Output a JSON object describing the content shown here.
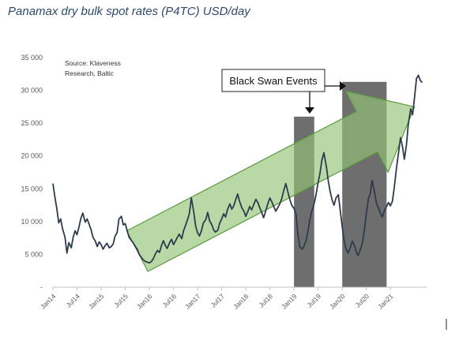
{
  "title": "Panamax dry bulk spot rates (P4TC) USD/day",
  "source_line1": "Source: Klaveness",
  "source_line2": "Research, Baltic",
  "colors": {
    "line": "#2e3b4e",
    "arrow_fill": "#92c476",
    "arrow_stroke": "#5a9a3c",
    "event_bar": "#5e5e5e",
    "axis": "#bfbfbf"
  },
  "chart_data": {
    "type": "line",
    "title": "Panamax dry bulk spot rates (P4TC) USD/day",
    "unit": "USD/day",
    "ylim": [
      0,
      35000
    ],
    "y_ticks": [
      0,
      5000,
      10000,
      15000,
      20000,
      25000,
      30000,
      35000
    ],
    "y_tick_labels": [
      "-",
      "5 000",
      "10 000",
      "15 000",
      "20 000",
      "25 000",
      "30 000",
      "35 000"
    ],
    "x_tick_labels": [
      "Jan14",
      "Jul14",
      "Jan15",
      "Jul15",
      "Jan16",
      "Jul16",
      "Jan17",
      "Jul17",
      "Jan18",
      "Jul18",
      "Jan19",
      "Jul19",
      "Jan20",
      "Jul20",
      "Jan21"
    ],
    "x_start": 2014.0,
    "x_end": 2021.75,
    "series": [
      {
        "name": "Panamax P4TC",
        "points": [
          [
            2014.0,
            15800
          ],
          [
            2014.04,
            13800
          ],
          [
            2014.08,
            12000
          ],
          [
            2014.12,
            9800
          ],
          [
            2014.16,
            10400
          ],
          [
            2014.2,
            8900
          ],
          [
            2014.25,
            7600
          ],
          [
            2014.29,
            5200
          ],
          [
            2014.33,
            6800
          ],
          [
            2014.38,
            6000
          ],
          [
            2014.42,
            7600
          ],
          [
            2014.46,
            8600
          ],
          [
            2014.5,
            8000
          ],
          [
            2014.54,
            9200
          ],
          [
            2014.58,
            10500
          ],
          [
            2014.62,
            11300
          ],
          [
            2014.67,
            9900
          ],
          [
            2014.71,
            10400
          ],
          [
            2014.75,
            9600
          ],
          [
            2014.79,
            8800
          ],
          [
            2014.83,
            7600
          ],
          [
            2014.88,
            7000
          ],
          [
            2014.92,
            6200
          ],
          [
            2014.96,
            6900
          ],
          [
            2015.0,
            6500
          ],
          [
            2015.04,
            5800
          ],
          [
            2015.08,
            6300
          ],
          [
            2015.12,
            6700
          ],
          [
            2015.17,
            6000
          ],
          [
            2015.21,
            6200
          ],
          [
            2015.25,
            6600
          ],
          [
            2015.29,
            7800
          ],
          [
            2015.33,
            8300
          ],
          [
            2015.37,
            10400
          ],
          [
            2015.42,
            10800
          ],
          [
            2015.46,
            9500
          ],
          [
            2015.5,
            9700
          ],
          [
            2015.54,
            8600
          ],
          [
            2015.58,
            7600
          ],
          [
            2015.62,
            7200
          ],
          [
            2015.67,
            6700
          ],
          [
            2015.71,
            6200
          ],
          [
            2015.75,
            5800
          ],
          [
            2015.79,
            5000
          ],
          [
            2015.83,
            4600
          ],
          [
            2015.87,
            4200
          ],
          [
            2015.92,
            3900
          ],
          [
            2015.96,
            3800
          ],
          [
            2016.0,
            3700
          ],
          [
            2016.04,
            3900
          ],
          [
            2016.08,
            4300
          ],
          [
            2016.12,
            5000
          ],
          [
            2016.17,
            5600
          ],
          [
            2016.21,
            5300
          ],
          [
            2016.25,
            6300
          ],
          [
            2016.29,
            7100
          ],
          [
            2016.33,
            6400
          ],
          [
            2016.37,
            5900
          ],
          [
            2016.42,
            6800
          ],
          [
            2016.46,
            7300
          ],
          [
            2016.5,
            6500
          ],
          [
            2016.54,
            7000
          ],
          [
            2016.58,
            7600
          ],
          [
            2016.62,
            8100
          ],
          [
            2016.67,
            7400
          ],
          [
            2016.71,
            8600
          ],
          [
            2016.75,
            9400
          ],
          [
            2016.79,
            10300
          ],
          [
            2016.83,
            11200
          ],
          [
            2016.87,
            13600
          ],
          [
            2016.92,
            11500
          ],
          [
            2016.96,
            9300
          ],
          [
            2017.0,
            8300
          ],
          [
            2017.04,
            7800
          ],
          [
            2017.08,
            8600
          ],
          [
            2017.12,
            9800
          ],
          [
            2017.17,
            10300
          ],
          [
            2017.21,
            11400
          ],
          [
            2017.25,
            10100
          ],
          [
            2017.29,
            9600
          ],
          [
            2017.33,
            8800
          ],
          [
            2017.37,
            8400
          ],
          [
            2017.42,
            8700
          ],
          [
            2017.46,
            9800
          ],
          [
            2017.5,
            10400
          ],
          [
            2017.54,
            11200
          ],
          [
            2017.58,
            10700
          ],
          [
            2017.62,
            11800
          ],
          [
            2017.67,
            12700
          ],
          [
            2017.71,
            11900
          ],
          [
            2017.75,
            12400
          ],
          [
            2017.79,
            13300
          ],
          [
            2017.83,
            14200
          ],
          [
            2017.87,
            13100
          ],
          [
            2017.92,
            12100
          ],
          [
            2017.96,
            11600
          ],
          [
            2018.0,
            10800
          ],
          [
            2018.04,
            11500
          ],
          [
            2018.08,
            12300
          ],
          [
            2018.12,
            11800
          ],
          [
            2018.17,
            12700
          ],
          [
            2018.21,
            13400
          ],
          [
            2018.25,
            12900
          ],
          [
            2018.29,
            12100
          ],
          [
            2018.33,
            11400
          ],
          [
            2018.37,
            10600
          ],
          [
            2018.42,
            11800
          ],
          [
            2018.46,
            12800
          ],
          [
            2018.5,
            13600
          ],
          [
            2018.54,
            13000
          ],
          [
            2018.58,
            12300
          ],
          [
            2018.62,
            11600
          ],
          [
            2018.67,
            12200
          ],
          [
            2018.71,
            12800
          ],
          [
            2018.75,
            13600
          ],
          [
            2018.79,
            14800
          ],
          [
            2018.83,
            15800
          ],
          [
            2018.87,
            14600
          ],
          [
            2018.92,
            13200
          ],
          [
            2018.96,
            12400
          ],
          [
            2019.0,
            12000
          ],
          [
            2019.04,
            11200
          ],
          [
            2019.08,
            8200
          ],
          [
            2019.12,
            6200
          ],
          [
            2019.17,
            5800
          ],
          [
            2019.21,
            6300
          ],
          [
            2019.25,
            7100
          ],
          [
            2019.29,
            8600
          ],
          [
            2019.33,
            10400
          ],
          [
            2019.37,
            11600
          ],
          [
            2019.42,
            12800
          ],
          [
            2019.46,
            14200
          ],
          [
            2019.5,
            16000
          ],
          [
            2019.54,
            17400
          ],
          [
            2019.58,
            19500
          ],
          [
            2019.62,
            20500
          ],
          [
            2019.67,
            18400
          ],
          [
            2019.71,
            16200
          ],
          [
            2019.75,
            14600
          ],
          [
            2019.79,
            13300
          ],
          [
            2019.83,
            12500
          ],
          [
            2019.87,
            13600
          ],
          [
            2019.92,
            14100
          ],
          [
            2019.96,
            11600
          ],
          [
            2020.0,
            9200
          ],
          [
            2020.04,
            7100
          ],
          [
            2020.08,
            5800
          ],
          [
            2020.12,
            5200
          ],
          [
            2020.17,
            6100
          ],
          [
            2020.21,
            7000
          ],
          [
            2020.25,
            6400
          ],
          [
            2020.29,
            5400
          ],
          [
            2020.33,
            4800
          ],
          [
            2020.37,
            5600
          ],
          [
            2020.42,
            6800
          ],
          [
            2020.46,
            8800
          ],
          [
            2020.5,
            11200
          ],
          [
            2020.54,
            13400
          ],
          [
            2020.58,
            14200
          ],
          [
            2020.62,
            16300
          ],
          [
            2020.67,
            14500
          ],
          [
            2020.71,
            12800
          ],
          [
            2020.75,
            12100
          ],
          [
            2020.79,
            11300
          ],
          [
            2020.83,
            10700
          ],
          [
            2020.87,
            11600
          ],
          [
            2020.92,
            12300
          ],
          [
            2020.96,
            12900
          ],
          [
            2021.0,
            12400
          ],
          [
            2021.04,
            13100
          ],
          [
            2021.08,
            15200
          ],
          [
            2021.12,
            17800
          ],
          [
            2021.17,
            20600
          ],
          [
            2021.21,
            22800
          ],
          [
            2021.25,
            21400
          ],
          [
            2021.29,
            19500
          ],
          [
            2021.33,
            21600
          ],
          [
            2021.37,
            24800
          ],
          [
            2021.42,
            27200
          ],
          [
            2021.46,
            26300
          ],
          [
            2021.5,
            28900
          ],
          [
            2021.54,
            31800
          ],
          [
            2021.58,
            32300
          ],
          [
            2021.62,
            31500
          ],
          [
            2021.66,
            31200
          ]
        ]
      }
    ],
    "event_periods": [
      {
        "start": 2019.0,
        "end": 2019.42,
        "height": 26000
      },
      {
        "start": 2020.0,
        "end": 2020.92,
        "height": 31300
      }
    ],
    "trend_arrow": {
      "start_x": 2015.75,
      "start_y": 5500,
      "end_x": 2021.5,
      "end_y": 27500
    },
    "annotation": "Black Swan Events"
  }
}
